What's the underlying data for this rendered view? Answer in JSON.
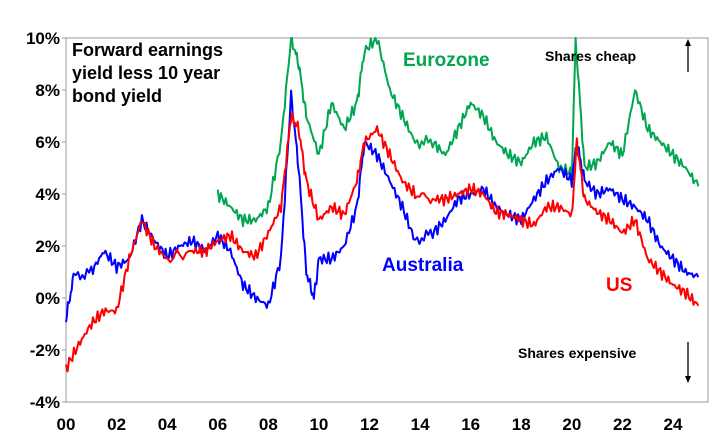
{
  "chart_data": {
    "type": "line",
    "title": "Forward earnings yield less 10 year bond yield",
    "title_lines": [
      "Forward earnings",
      "yield less 10 year",
      "bond yield"
    ],
    "xlabel": "",
    "ylabel": "",
    "xlim": [
      2000,
      2025.8
    ],
    "ylim": [
      -4,
      10
    ],
    "x_ticks": [
      "00",
      "02",
      "04",
      "06",
      "08",
      "10",
      "12",
      "14",
      "16",
      "18",
      "20",
      "22",
      "24"
    ],
    "y_ticks": [
      "-4%",
      "-2%",
      "0%",
      "2%",
      "4%",
      "6%",
      "8%",
      "10%"
    ],
    "grid": false,
    "annotations": {
      "top": "Shares cheap",
      "bottom": "Shares expensive"
    },
    "series": [
      {
        "name": "Eurozone",
        "color": "#00A650",
        "x": [
          2006,
          2006.5,
          2007,
          2007.5,
          2008,
          2008.5,
          2008.9,
          2009.2,
          2009.5,
          2010,
          2010.5,
          2011,
          2011.5,
          2011.8,
          2012.3,
          2012.8,
          2013.3,
          2013.8,
          2014.5,
          2015,
          2015.5,
          2016,
          2016.5,
          2017,
          2017.5,
          2018,
          2018.5,
          2019,
          2019.5,
          2020,
          2020.15,
          2020.5,
          2021,
          2021.5,
          2022,
          2022.5,
          2023,
          2023.5,
          2024,
          2024.5,
          2025
        ],
        "y": [
          4.0,
          3.5,
          3.0,
          3.0,
          3.5,
          6.0,
          10.0,
          9.0,
          7.0,
          5.5,
          7.5,
          6.5,
          7.5,
          9.5,
          10.0,
          8.0,
          7.0,
          6.0,
          6.0,
          5.5,
          6.5,
          7.5,
          7.0,
          6.0,
          5.5,
          5.2,
          6.0,
          6.2,
          5.0,
          4.8,
          10.0,
          5.0,
          5.2,
          6.0,
          5.5,
          8.0,
          6.5,
          6.0,
          5.5,
          5.0,
          4.3
        ]
      },
      {
        "name": "Australia",
        "color": "#0000FF",
        "x": [
          2000,
          2000.3,
          2001,
          2001.5,
          2002,
          2002.5,
          2003,
          2003.5,
          2004,
          2004.5,
          2005,
          2005.5,
          2006,
          2006.5,
          2007,
          2007.5,
          2008,
          2008.5,
          2008.9,
          2009.2,
          2009.5,
          2009.8,
          2010,
          2010.5,
          2011,
          2011.5,
          2011.8,
          2012.3,
          2012.8,
          2013.3,
          2013.8,
          2014.5,
          2015,
          2015.5,
          2016,
          2016.5,
          2017,
          2017.5,
          2018,
          2018.5,
          2019,
          2019.5,
          2020,
          2020.2,
          2020.5,
          2021,
          2021.5,
          2022,
          2022.5,
          2023,
          2023.5,
          2024,
          2024.5,
          2025
        ],
        "y": [
          -0.8,
          0.8,
          1.0,
          1.8,
          1.2,
          1.5,
          3.0,
          2.2,
          1.6,
          2.0,
          2.2,
          1.8,
          2.4,
          1.8,
          0.5,
          0.0,
          -0.3,
          1.5,
          7.8,
          5.0,
          1.0,
          0.0,
          1.5,
          1.5,
          2.0,
          3.5,
          6.0,
          5.5,
          4.5,
          3.5,
          2.2,
          2.5,
          3.0,
          3.8,
          4.0,
          4.2,
          3.5,
          3.2,
          3.0,
          3.8,
          4.5,
          5.0,
          4.5,
          6.0,
          4.5,
          4.0,
          4.2,
          3.8,
          3.5,
          3.0,
          2.0,
          1.5,
          1.0,
          0.8
        ]
      },
      {
        "name": "US",
        "color": "#FF0000",
        "x": [
          2000,
          2000.5,
          2001,
          2001.5,
          2002,
          2002.5,
          2003,
          2003.5,
          2004,
          2005,
          2005.5,
          2006,
          2006.5,
          2007,
          2007.5,
          2008,
          2008.5,
          2008.9,
          2009.2,
          2009.5,
          2010,
          2010.5,
          2011,
          2011.5,
          2011.8,
          2012.3,
          2012.8,
          2013.3,
          2013.8,
          2014.5,
          2015,
          2015.5,
          2016,
          2016.5,
          2017,
          2017.5,
          2018,
          2018.5,
          2019,
          2019.5,
          2020,
          2020.2,
          2020.5,
          2021,
          2021.5,
          2022,
          2022.5,
          2023,
          2023.5,
          2024,
          2024.5,
          2025
        ],
        "y": [
          -2.7,
          -1.8,
          -1.0,
          -0.5,
          -0.5,
          1.5,
          3.0,
          2.0,
          1.5,
          1.8,
          1.8,
          2.2,
          2.4,
          1.8,
          1.6,
          2.5,
          3.5,
          7.0,
          6.5,
          4.5,
          3.0,
          3.5,
          3.2,
          4.5,
          6.0,
          6.5,
          5.5,
          4.5,
          4.0,
          3.8,
          3.8,
          4.0,
          4.2,
          4.0,
          3.3,
          3.2,
          3.0,
          2.8,
          3.5,
          3.5,
          3.2,
          6.0,
          3.8,
          3.3,
          3.0,
          2.5,
          3.0,
          1.5,
          1.0,
          0.5,
          0.2,
          -0.3
        ]
      }
    ]
  }
}
